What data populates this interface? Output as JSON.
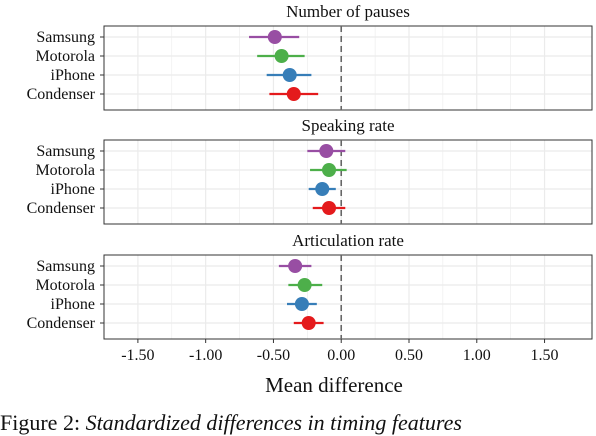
{
  "chart_data": [
    {
      "type": "scatter",
      "title": "Number of pauses",
      "categories": [
        "Samsung",
        "Motorola",
        "iPhone",
        "Condenser"
      ],
      "estimates": [
        -0.49,
        -0.44,
        -0.38,
        -0.35
      ],
      "ci_lower": [
        -0.68,
        -0.62,
        -0.55,
        -0.53
      ],
      "ci_upper": [
        -0.31,
        -0.27,
        -0.22,
        -0.17
      ],
      "xlim": [
        -1.75,
        1.85
      ],
      "reference_line": 0,
      "grid": true
    },
    {
      "type": "scatter",
      "title": "Speaking rate",
      "categories": [
        "Samsung",
        "Motorola",
        "iPhone",
        "Condenser"
      ],
      "estimates": [
        -0.11,
        -0.09,
        -0.14,
        -0.09
      ],
      "ci_lower": [
        -0.25,
        -0.23,
        -0.24,
        -0.21
      ],
      "ci_upper": [
        0.03,
        0.04,
        -0.04,
        0.03
      ],
      "xlim": [
        -1.75,
        1.85
      ],
      "reference_line": 0,
      "grid": true
    },
    {
      "type": "scatter",
      "title": "Articulation rate",
      "categories": [
        "Samsung",
        "Motorola",
        "iPhone",
        "Condenser"
      ],
      "estimates": [
        -0.34,
        -0.27,
        -0.29,
        -0.24
      ],
      "ci_lower": [
        -0.46,
        -0.39,
        -0.4,
        -0.35
      ],
      "ci_upper": [
        -0.22,
        -0.14,
        -0.18,
        -0.13
      ],
      "xlim": [
        -1.75,
        1.85
      ],
      "reference_line": 0,
      "grid": true
    }
  ],
  "axis": {
    "xlabel": "Mean difference",
    "ticks": [
      -1.5,
      -1.0,
      -0.5,
      0.0,
      0.5,
      1.0,
      1.5
    ],
    "tick_labels": [
      "-1.50",
      "-1.00",
      "-0.50",
      "0.00",
      "0.50",
      "1.00",
      "1.50"
    ]
  },
  "colors": {
    "Samsung": "#984ea3",
    "Motorola": "#4daf4a",
    "iPhone": "#377eb8",
    "Condenser": "#e41a1c",
    "grid": "#ebebeb",
    "panel_border": "#333333",
    "reference_line": "#666666"
  },
  "caption": {
    "prefix": "Figure 2: ",
    "text": "Standardized differences in timing features"
  }
}
